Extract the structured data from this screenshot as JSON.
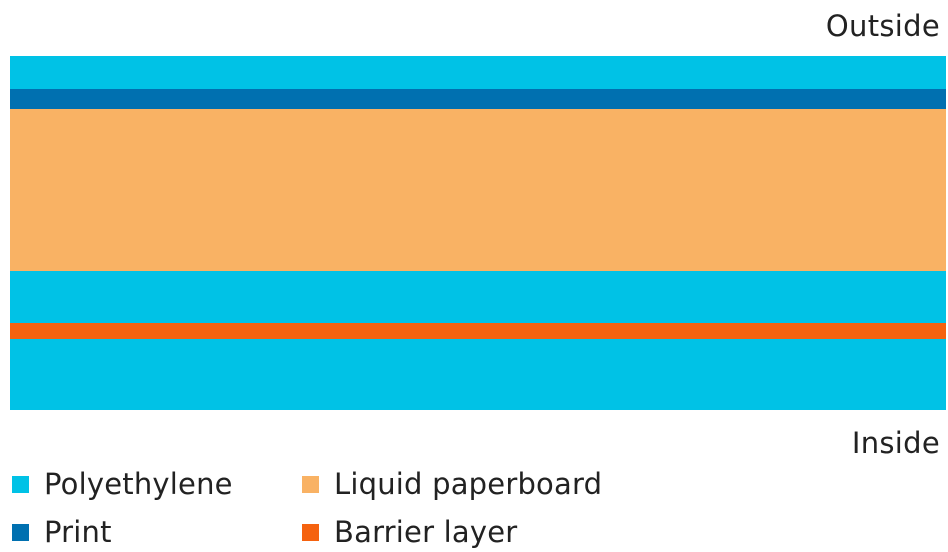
{
  "labels": {
    "outside": "Outside",
    "inside": "Inside"
  },
  "layers": [
    {
      "material": "Polyethylene",
      "color": "#00c2e6"
    },
    {
      "material": "Print",
      "color": "#0070b0"
    },
    {
      "material": "Liquid paperboard",
      "color": "#f9b264"
    },
    {
      "material": "Polyethylene",
      "color": "#00c2e6"
    },
    {
      "material": "Barrier layer",
      "color": "#f5620f"
    },
    {
      "material": "Polyethylene",
      "color": "#00c2e6"
    }
  ],
  "legend": [
    {
      "label": "Polyethylene",
      "color": "#00c2e6"
    },
    {
      "label": "Liquid paperboard",
      "color": "#f9b264"
    },
    {
      "label": "Print",
      "color": "#0070b0"
    },
    {
      "label": "Barrier layer",
      "color": "#f5620f"
    }
  ]
}
